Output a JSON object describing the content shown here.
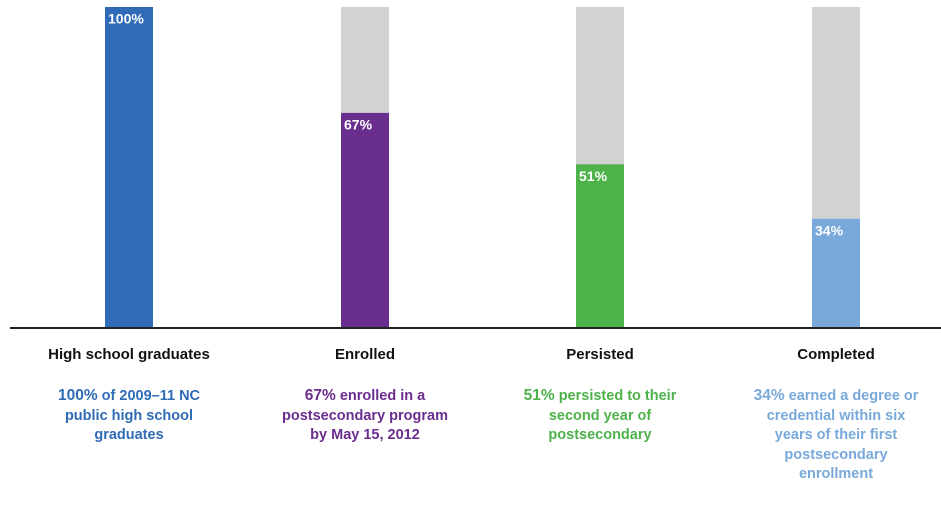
{
  "chart_data": {
    "type": "bar",
    "categories": [
      "High school graduates",
      "Enrolled",
      "Persisted",
      "Completed"
    ],
    "values": [
      100,
      67,
      51,
      34
    ],
    "value_labels": [
      "100%",
      "67%",
      "51%",
      "34%"
    ],
    "colors": [
      "#2f6bb6",
      "#6a2e8f",
      "#4db24a",
      "#78a9da"
    ],
    "track_color": "#d1d2d4",
    "descriptions": [
      "of 2009–11 NC public high school graduates",
      "enrolled in a postsecondary program by May 15, 2012",
      "persisted to their second year of postsecondary",
      "earned a degree or credential within six years of their first postsecondary enrollment"
    ],
    "ylim": [
      0,
      100
    ]
  }
}
